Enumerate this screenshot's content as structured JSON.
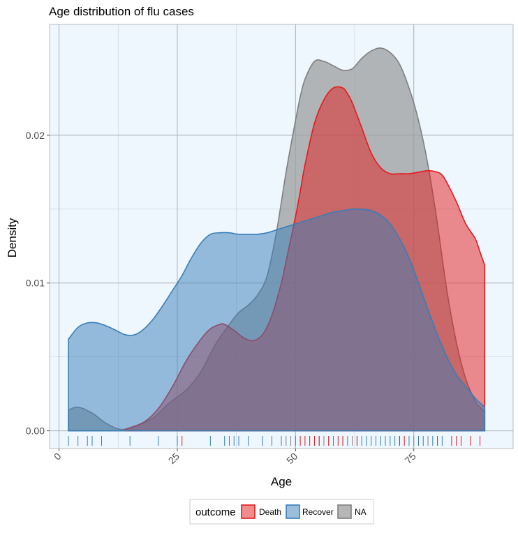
{
  "chart_data": {
    "type": "area",
    "subtype": "density",
    "title": "Age distribution of flu cases",
    "xlabel": "Age",
    "ylabel": "Density",
    "xlim": [
      -2,
      96
    ],
    "ylim": [
      -0.0012,
      0.0275
    ],
    "x_ticks": [
      0,
      25,
      50,
      75
    ],
    "x_tick_labels": [
      "0",
      "25",
      "50",
      "75"
    ],
    "y_ticks": [
      0.0,
      0.01,
      0.02
    ],
    "y_tick_labels": [
      "0.00",
      "0.01",
      "0.02"
    ],
    "grid": true,
    "background": "#EEF6FE",
    "legend": {
      "title": "outcome",
      "position": "bottom",
      "entries": [
        "Death",
        "Recover",
        "NA"
      ]
    },
    "series": [
      {
        "name": "NA",
        "fill": "#9A9A9A",
        "stroke": "#7F7F7F",
        "fill_opacity": 0.72,
        "x": [
          2,
          4,
          7,
          10,
          13,
          16,
          20,
          23,
          27,
          30,
          33,
          36,
          38,
          40,
          42,
          44,
          46,
          48,
          50,
          51,
          52,
          54,
          56,
          58,
          60,
          62,
          64,
          66,
          68,
          70,
          72,
          74,
          76,
          78,
          80,
          82,
          84,
          86,
          88,
          89,
          90
        ],
        "values": [
          0.0014,
          0.0016,
          0.0012,
          0.0005,
          0.0001,
          0.0003,
          0.0009,
          0.0018,
          0.0028,
          0.004,
          0.0058,
          0.0072,
          0.008,
          0.0085,
          0.0092,
          0.0105,
          0.0135,
          0.0175,
          0.021,
          0.0226,
          0.0238,
          0.025,
          0.025,
          0.0247,
          0.0244,
          0.0245,
          0.0252,
          0.0257,
          0.0259,
          0.0256,
          0.0248,
          0.0232,
          0.021,
          0.018,
          0.014,
          0.0095,
          0.006,
          0.0035,
          0.002,
          0.0016,
          0.0013
        ]
      },
      {
        "name": "Death",
        "fill": "#E41A1C",
        "stroke": "#E41A1C",
        "fill_opacity": 0.5,
        "x": [
          14,
          18,
          21,
          24,
          27,
          30,
          32,
          34,
          35,
          37,
          39,
          41,
          43,
          45,
          47,
          48,
          50,
          51,
          52,
          54,
          56,
          58,
          60,
          61,
          62,
          64,
          66,
          68,
          70,
          72,
          74,
          76,
          78,
          80,
          81,
          82,
          84,
          86,
          88,
          89,
          90
        ],
        "values": [
          0.0001,
          0.0006,
          0.0015,
          0.003,
          0.0048,
          0.0062,
          0.0069,
          0.0072,
          0.0072,
          0.0068,
          0.0063,
          0.0061,
          0.0065,
          0.0078,
          0.01,
          0.0115,
          0.0145,
          0.0162,
          0.018,
          0.0208,
          0.0224,
          0.0232,
          0.0232,
          0.0228,
          0.0222,
          0.0205,
          0.0188,
          0.0178,
          0.0174,
          0.0174,
          0.0174,
          0.0175,
          0.0176,
          0.0175,
          0.0173,
          0.0168,
          0.0155,
          0.014,
          0.013,
          0.0121,
          0.0112
        ]
      },
      {
        "name": "Recover",
        "fill": "#377EB8",
        "stroke": "#377EB8",
        "fill_opacity": 0.5,
        "x": [
          2,
          4,
          6,
          8,
          10,
          12,
          14,
          16,
          18,
          20,
          22,
          24,
          26,
          28,
          30,
          32,
          34,
          36,
          38,
          40,
          42,
          44,
          46,
          48,
          50,
          52,
          54,
          56,
          58,
          60,
          62,
          64,
          66,
          68,
          70,
          72,
          74,
          76,
          78,
          80,
          82,
          84,
          86,
          88,
          90
        ],
        "values": [
          0.0062,
          0.007,
          0.0073,
          0.0073,
          0.0071,
          0.0068,
          0.0065,
          0.0065,
          0.0069,
          0.0076,
          0.0085,
          0.0095,
          0.0105,
          0.0117,
          0.0127,
          0.0133,
          0.0134,
          0.0134,
          0.0133,
          0.0133,
          0.0133,
          0.0134,
          0.0136,
          0.0138,
          0.014,
          0.0142,
          0.0144,
          0.0146,
          0.0148,
          0.0149,
          0.015,
          0.015,
          0.0149,
          0.0146,
          0.014,
          0.013,
          0.0117,
          0.01,
          0.0082,
          0.0065,
          0.005,
          0.0038,
          0.003,
          0.0022,
          0.0016
        ]
      }
    ],
    "rug": {
      "Recover": [
        2,
        4,
        6,
        7,
        9,
        15,
        21,
        25,
        32,
        35,
        36,
        37,
        38,
        40,
        43,
        45,
        47,
        50,
        55,
        58,
        61,
        63,
        64,
        65,
        66,
        67,
        68,
        69,
        70,
        71,
        74,
        76,
        77,
        79,
        81
      ],
      "NA": [
        48,
        49,
        56,
        57,
        60,
        62,
        72,
        75,
        78
      ],
      "Death": [
        26,
        51,
        52,
        53,
        54,
        55,
        57,
        59,
        60,
        63,
        72,
        73,
        80,
        83,
        84,
        85,
        87,
        89
      ]
    }
  }
}
